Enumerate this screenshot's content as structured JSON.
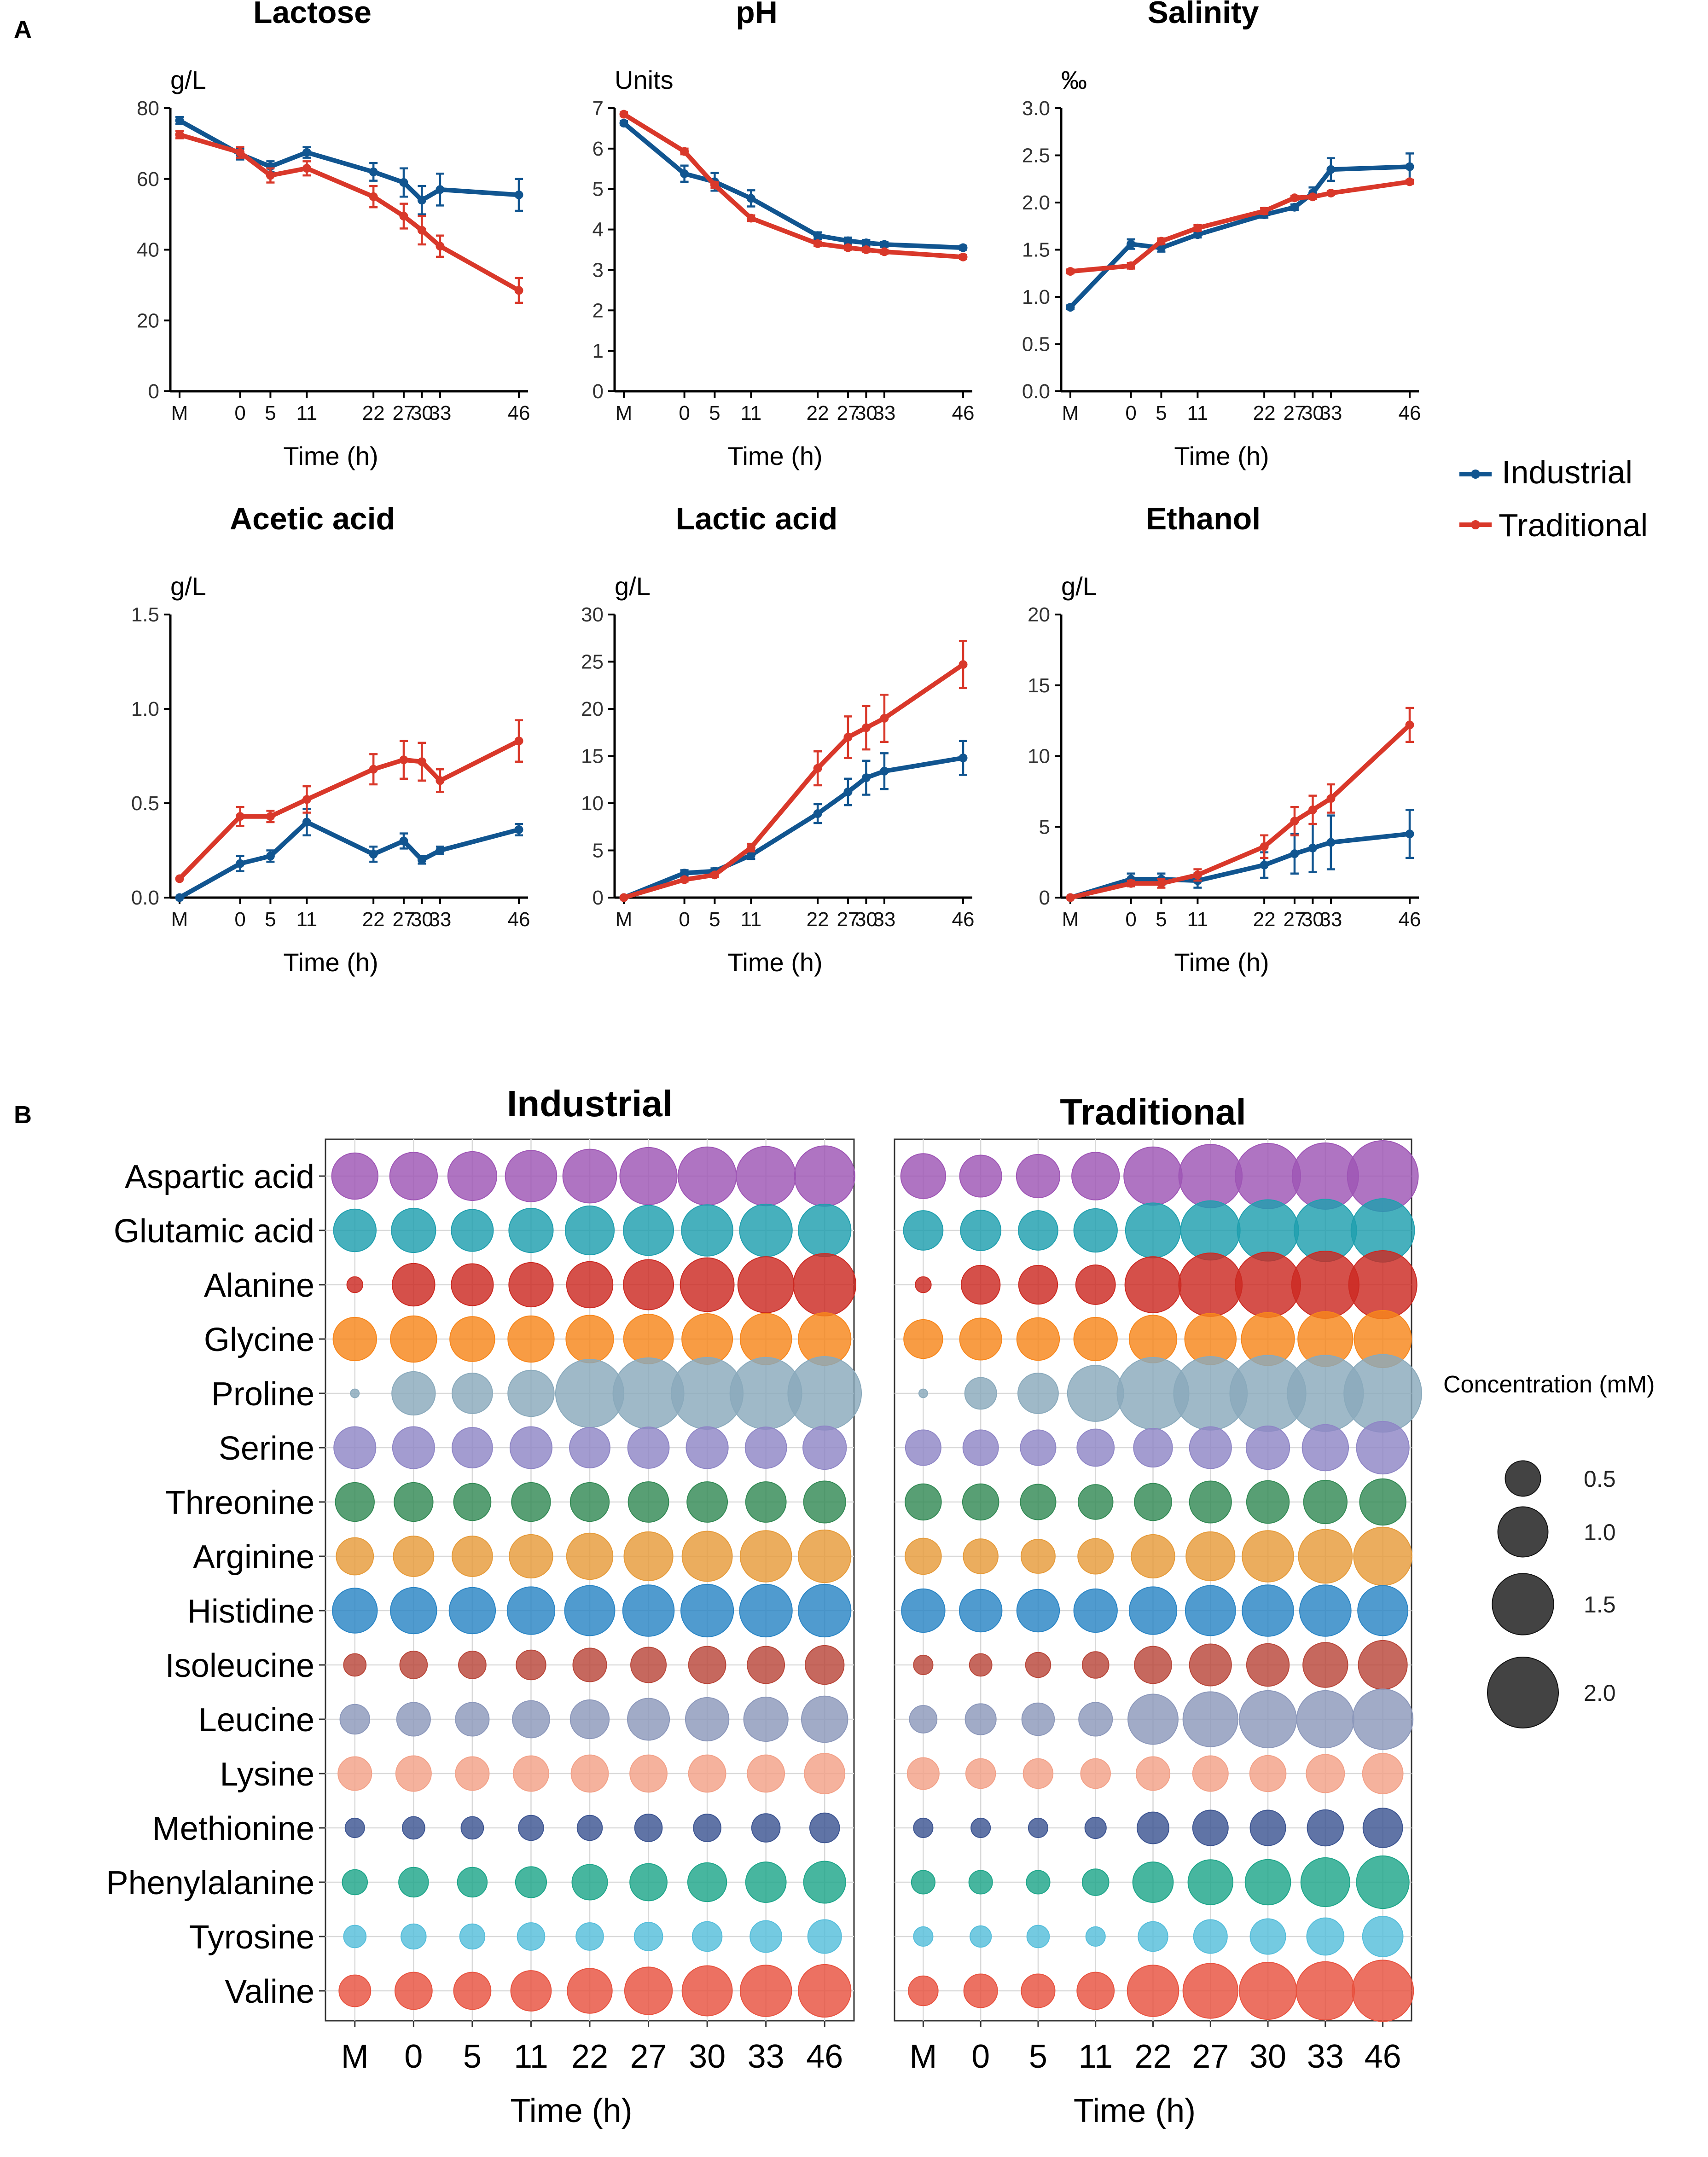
{
  "panel_labels": {
    "a": "A",
    "b": "B"
  },
  "colors": {
    "industrial": "#115590",
    "traditional": "#d9382a",
    "axis": "#000000",
    "grid": "#d9d9d9"
  },
  "legend": {
    "industrial": "Industrial",
    "traditional": "Traditional",
    "size_title": "Concentration (mM)",
    "size_values": [
      0.5,
      1.0,
      1.5,
      2.0
    ],
    "size_labels": [
      "0.5",
      "1.0",
      "1.5",
      "2.0"
    ]
  },
  "chart_data": [
    {
      "type": "line",
      "title": "Lactose",
      "ylabel": "g/L",
      "xlabel": "Time (h)",
      "x_labels": [
        "M",
        "0",
        "5",
        "11",
        "22",
        "27",
        "30",
        "33",
        "46"
      ],
      "x": [
        -10,
        0,
        5,
        11,
        22,
        27,
        30,
        33,
        46
      ],
      "ylim": [
        0,
        80
      ],
      "yticks": [
        0,
        20,
        40,
        60,
        80
      ],
      "ytick_labels": [
        "0",
        "20",
        "40",
        "60",
        "80"
      ],
      "series": [
        {
          "name": "Industrial",
          "values": [
            76.5,
            67,
            63.5,
            67.5,
            62,
            59,
            54,
            57,
            55.5
          ],
          "errors": [
            1,
            1.5,
            1.5,
            1.5,
            2.5,
            4,
            4,
            4.5,
            4.5
          ]
        },
        {
          "name": "Traditional",
          "values": [
            72.5,
            67.5,
            61,
            63,
            55,
            49.5,
            45.5,
            41,
            28.5
          ],
          "errors": [
            1,
            1.5,
            2,
            2,
            3,
            3.5,
            4,
            3,
            3.5
          ]
        }
      ]
    },
    {
      "type": "line",
      "title": "pH",
      "ylabel": "Units",
      "xlabel": "Time (h)",
      "x_labels": [
        "M",
        "0",
        "5",
        "11",
        "22",
        "27",
        "30",
        "33",
        "46"
      ],
      "x": [
        -10,
        0,
        5,
        11,
        22,
        27,
        30,
        33,
        46
      ],
      "ylim": [
        0,
        7
      ],
      "yticks": [
        0,
        1,
        2,
        3,
        4,
        5,
        6,
        7
      ],
      "ytick_labels": [
        "0",
        "1",
        "2",
        "3",
        "4",
        "5",
        "6",
        "7"
      ],
      "series": [
        {
          "name": "Industrial",
          "values": [
            6.63,
            5.38,
            5.18,
            4.77,
            3.85,
            3.72,
            3.67,
            3.63,
            3.55
          ],
          "errors": [
            0.05,
            0.2,
            0.22,
            0.2,
            0.08,
            0.08,
            0.07,
            0.06,
            0.05
          ]
        },
        {
          "name": "Traditional",
          "values": [
            6.85,
            5.93,
            5.1,
            4.28,
            3.65,
            3.55,
            3.5,
            3.45,
            3.32
          ],
          "errors": [
            0.05,
            0.07,
            0.07,
            0.07,
            0.05,
            0.05,
            0.05,
            0.05,
            0.05
          ]
        }
      ]
    },
    {
      "type": "line",
      "title": "Salinity",
      "ylabel": "‰",
      "xlabel": "Time (h)",
      "x_labels": [
        "M",
        "0",
        "5",
        "11",
        "22",
        "27",
        "30",
        "33",
        "46"
      ],
      "x": [
        -10,
        0,
        5,
        11,
        22,
        27,
        30,
        33,
        46
      ],
      "ylim": [
        0,
        3
      ],
      "yticks": [
        0,
        0.5,
        1,
        1.5,
        2,
        2.5,
        3
      ],
      "ytick_labels": [
        "0.0",
        "0.5",
        "1.0",
        "1.5",
        "2.0",
        "2.5",
        "3.0"
      ],
      "series": [
        {
          "name": "Industrial",
          "values": [
            0.89,
            1.56,
            1.52,
            1.66,
            1.87,
            1.95,
            2.1,
            2.35,
            2.38
          ],
          "errors": [
            0.02,
            0.05,
            0.04,
            0.03,
            0.03,
            0.03,
            0.06,
            0.12,
            0.14
          ]
        },
        {
          "name": "Traditional",
          "values": [
            1.27,
            1.33,
            1.59,
            1.73,
            1.91,
            2.05,
            2.06,
            2.1,
            2.22
          ],
          "errors": [
            0.02,
            0.03,
            0.03,
            0.03,
            0.03,
            0.02,
            0.02,
            0.02,
            0.02
          ]
        }
      ]
    },
    {
      "type": "line",
      "title": "Acetic acid",
      "ylabel": "g/L",
      "xlabel": "Time (h)",
      "x_labels": [
        "M",
        "0",
        "5",
        "11",
        "22",
        "27",
        "30",
        "33",
        "46"
      ],
      "x": [
        -10,
        0,
        5,
        11,
        22,
        27,
        30,
        33,
        46
      ],
      "ylim": [
        0,
        1.5
      ],
      "yticks": [
        0,
        0.5,
        1,
        1.5
      ],
      "ytick_labels": [
        "0.0",
        "0.5",
        "1.0",
        "1.5"
      ],
      "series": [
        {
          "name": "Industrial",
          "values": [
            0,
            0.18,
            0.22,
            0.4,
            0.23,
            0.3,
            0.2,
            0.25,
            0.36
          ],
          "errors": [
            0,
            0.04,
            0.03,
            0.07,
            0.04,
            0.04,
            0.02,
            0.02,
            0.03
          ]
        },
        {
          "name": "Traditional",
          "values": [
            0.1,
            0.43,
            0.43,
            0.52,
            0.68,
            0.73,
            0.72,
            0.62,
            0.83
          ],
          "errors": [
            0,
            0.05,
            0.03,
            0.07,
            0.08,
            0.1,
            0.1,
            0.06,
            0.11
          ]
        }
      ]
    },
    {
      "type": "line",
      "title": "Lactic acid",
      "ylabel": "g/L",
      "xlabel": "Time (h)",
      "x_labels": [
        "M",
        "0",
        "5",
        "11",
        "22",
        "27",
        "30",
        "33",
        "46"
      ],
      "x": [
        -10,
        0,
        5,
        11,
        22,
        27,
        30,
        33,
        46
      ],
      "ylim": [
        0,
        30
      ],
      "yticks": [
        0,
        5,
        10,
        15,
        20,
        25,
        30
      ],
      "ytick_labels": [
        "0",
        "5",
        "10",
        "15",
        "20",
        "25",
        "30"
      ],
      "series": [
        {
          "name": "Industrial",
          "values": [
            0,
            2.6,
            2.8,
            4.5,
            8.9,
            11.2,
            12.7,
            13.4,
            14.8
          ],
          "errors": [
            0,
            0.3,
            0.3,
            0.4,
            1,
            1.4,
            1.8,
            1.9,
            1.8
          ]
        },
        {
          "name": "Traditional",
          "values": [
            0,
            1.9,
            2.4,
            5.3,
            13.7,
            17,
            18,
            19,
            24.7
          ],
          "errors": [
            0,
            0.2,
            0.2,
            0.4,
            1.8,
            2.2,
            2.3,
            2.5,
            2.5
          ]
        }
      ]
    },
    {
      "type": "line",
      "title": "Ethanol",
      "ylabel": "g/L",
      "xlabel": "Time (h)",
      "x_labels": [
        "M",
        "0",
        "5",
        "11",
        "22",
        "27",
        "30",
        "33",
        "46"
      ],
      "x": [
        -10,
        0,
        5,
        11,
        22,
        27,
        30,
        33,
        46
      ],
      "ylim": [
        0,
        20
      ],
      "yticks": [
        0,
        5,
        10,
        15,
        20
      ],
      "ytick_labels": [
        "0",
        "5",
        "10",
        "15",
        "20"
      ],
      "series": [
        {
          "name": "Industrial",
          "values": [
            0,
            1.3,
            1.3,
            1.2,
            2.3,
            3.1,
            3.5,
            3.9,
            4.5
          ],
          "errors": [
            0,
            0.4,
            0.4,
            0.5,
            0.9,
            1.4,
            1.7,
            1.9,
            1.7
          ]
        },
        {
          "name": "Traditional",
          "values": [
            0,
            1,
            1,
            1.6,
            3.6,
            5.4,
            6.2,
            7,
            12.2
          ],
          "errors": [
            0,
            0.2,
            0.3,
            0.4,
            0.8,
            1,
            1,
            1,
            1.2
          ]
        }
      ]
    },
    {
      "type": "bubble",
      "titles": [
        "Industrial",
        "Traditional"
      ],
      "xlabel": "Time (h)",
      "x_labels": [
        "M",
        "0",
        "5",
        "11",
        "22",
        "27",
        "30",
        "33",
        "46"
      ],
      "rows": [
        {
          "name": "Aspartic acid",
          "color": "#9e55b5",
          "industrial": [
            0.85,
            0.9,
            0.95,
            1.05,
            1.15,
            1.3,
            1.35,
            1.4,
            1.45
          ],
          "traditional": [
            0.8,
            0.7,
            0.75,
            0.9,
            1.35,
            1.6,
            1.7,
            1.75,
            2.0
          ]
        },
        {
          "name": "Glutamic acid",
          "color": "#1f9fae",
          "industrial": [
            0.72,
            0.78,
            0.7,
            0.78,
            0.95,
            1.0,
            1.05,
            1.1,
            1.1
          ],
          "traditional": [
            0.62,
            0.65,
            0.62,
            0.75,
            1.2,
            1.4,
            1.5,
            1.55,
            1.6
          ]
        },
        {
          "name": "Alanine",
          "color": "#cc2a22",
          "industrial": [
            0.1,
            0.72,
            0.7,
            0.78,
            0.85,
            1.0,
            1.15,
            1.25,
            1.55
          ],
          "traditional": [
            0.1,
            0.6,
            0.6,
            0.62,
            1.25,
            1.6,
            1.7,
            1.8,
            1.85
          ]
        },
        {
          "name": "Glycine",
          "color": "#f7861b",
          "industrial": [
            0.75,
            0.85,
            0.8,
            0.85,
            0.9,
            0.98,
            1.02,
            1.05,
            1.1
          ],
          "traditional": [
            0.6,
            0.7,
            0.72,
            0.75,
            0.9,
            1.05,
            1.12,
            1.2,
            1.3
          ]
        },
        {
          "name": "Proline",
          "color": "#8aaabc",
          "industrial": [
            0.03,
            0.75,
            0.65,
            0.85,
            1.85,
            2.0,
            2.05,
            2.05,
            2.15
          ],
          "traditional": [
            0.03,
            0.4,
            0.65,
            1.25,
            2.05,
            2.15,
            2.3,
            2.3,
            2.4
          ]
        },
        {
          "name": "Serine",
          "color": "#8f86c6",
          "industrial": [
            0.7,
            0.7,
            0.65,
            0.7,
            0.65,
            0.68,
            0.7,
            0.68,
            0.75
          ],
          "traditional": [
            0.5,
            0.5,
            0.5,
            0.55,
            0.6,
            0.7,
            0.75,
            0.85,
            1.1
          ]
        },
        {
          "name": "Threonine",
          "color": "#338a55",
          "industrial": [
            0.6,
            0.6,
            0.55,
            0.6,
            0.6,
            0.65,
            0.65,
            0.65,
            0.7
          ],
          "traditional": [
            0.52,
            0.52,
            0.5,
            0.48,
            0.55,
            0.7,
            0.72,
            0.75,
            0.85
          ]
        },
        {
          "name": "Arginine",
          "color": "#e69b3a",
          "industrial": [
            0.55,
            0.65,
            0.65,
            0.75,
            0.85,
            0.95,
            1.0,
            1.05,
            1.1
          ],
          "traditional": [
            0.52,
            0.48,
            0.46,
            0.5,
            0.75,
            0.95,
            1.05,
            1.15,
            1.35
          ]
        },
        {
          "name": "Histidine",
          "color": "#2a85c5",
          "industrial": [
            0.8,
            0.85,
            0.85,
            0.9,
            1.0,
            1.05,
            1.1,
            1.1,
            1.1
          ],
          "traditional": [
            0.75,
            0.72,
            0.72,
            0.75,
            0.9,
            1.0,
            1.05,
            1.05,
            1.0
          ]
        },
        {
          "name": "Isoleucine",
          "color": "#b9473a",
          "industrial": [
            0.2,
            0.3,
            0.3,
            0.35,
            0.45,
            0.5,
            0.55,
            0.55,
            0.6
          ],
          "traditional": [
            0.15,
            0.2,
            0.25,
            0.28,
            0.55,
            0.7,
            0.72,
            0.8,
            0.95
          ]
        },
        {
          "name": "Leucine",
          "color": "#8c98bb",
          "industrial": [
            0.35,
            0.45,
            0.45,
            0.55,
            0.6,
            0.7,
            0.75,
            0.78,
            0.85
          ],
          "traditional": [
            0.3,
            0.38,
            0.42,
            0.45,
            1.0,
            1.2,
            1.3,
            1.3,
            1.45
          ]
        },
        {
          "name": "Lysine",
          "color": "#f3a188",
          "industrial": [
            0.45,
            0.5,
            0.45,
            0.5,
            0.55,
            0.55,
            0.55,
            0.55,
            0.65
          ],
          "traditional": [
            0.4,
            0.35,
            0.35,
            0.35,
            0.45,
            0.5,
            0.52,
            0.58,
            0.65
          ]
        },
        {
          "name": "Methionine",
          "color": "#3d5592",
          "industrial": [
            0.15,
            0.2,
            0.2,
            0.25,
            0.25,
            0.3,
            0.3,
            0.32,
            0.35
          ],
          "traditional": [
            0.15,
            0.15,
            0.15,
            0.18,
            0.4,
            0.5,
            0.5,
            0.52,
            0.62
          ]
        },
        {
          "name": "Phenylalanine",
          "color": "#1ea68a",
          "industrial": [
            0.25,
            0.35,
            0.35,
            0.38,
            0.5,
            0.55,
            0.6,
            0.65,
            0.7
          ],
          "traditional": [
            0.22,
            0.22,
            0.22,
            0.28,
            0.65,
            0.8,
            0.82,
            0.95,
            1.1
          ]
        },
        {
          "name": "Tyrosine",
          "color": "#55bedb",
          "industrial": [
            0.2,
            0.25,
            0.25,
            0.3,
            0.3,
            0.32,
            0.35,
            0.4,
            0.45
          ],
          "traditional": [
            0.15,
            0.18,
            0.2,
            0.15,
            0.35,
            0.45,
            0.5,
            0.55,
            0.65
          ]
        },
        {
          "name": "Valine",
          "color": "#e8523f",
          "industrial": [
            0.4,
            0.55,
            0.55,
            0.65,
            0.8,
            0.9,
            1.0,
            1.05,
            1.1
          ],
          "traditional": [
            0.35,
            0.45,
            0.45,
            0.55,
            1.05,
            1.2,
            1.3,
            1.35,
            1.5
          ]
        }
      ]
    }
  ]
}
